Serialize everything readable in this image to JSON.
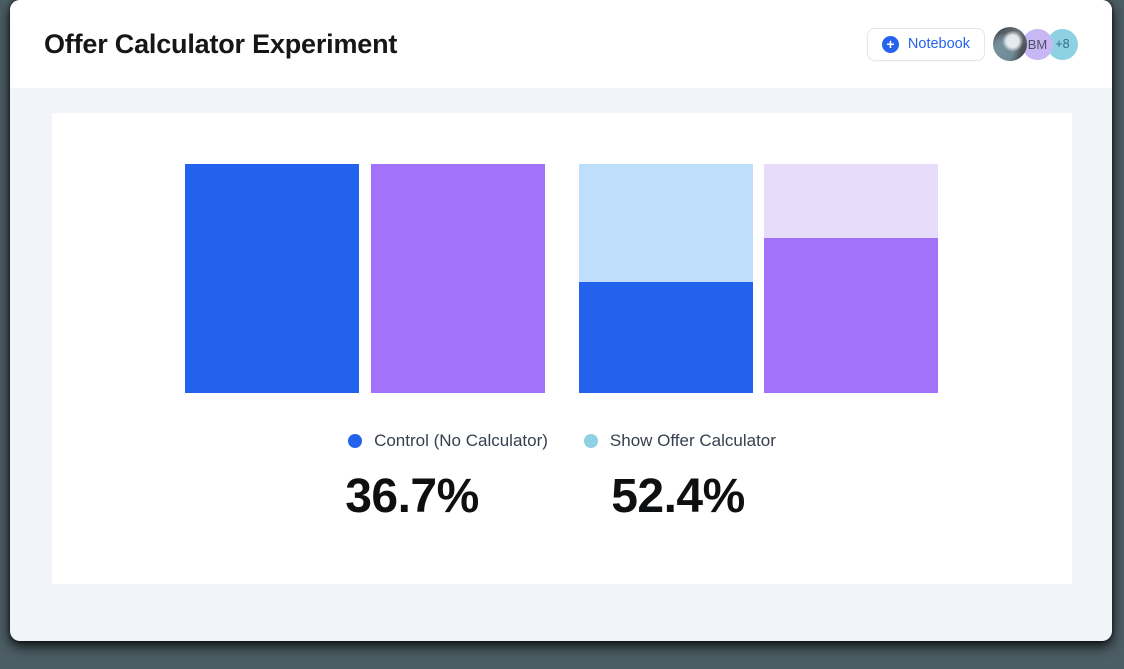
{
  "app": {
    "header": {
      "title": "Offer Calculator Experiment",
      "notebook_button": {
        "label": "Notebook",
        "icon": "plus-circle-icon",
        "icon_glyph": "+"
      },
      "avatars": {
        "photo": "user-photo-avatar",
        "initials": "BM",
        "overflow_count": "+8"
      }
    }
  },
  "chart_data": {
    "type": "bar",
    "title": "",
    "xlabel": "",
    "ylabel": "",
    "axes_visible": false,
    "gridlines": false,
    "bars": [
      {
        "group": 1,
        "segments": [
          {
            "color": "blue",
            "fraction": 1.0
          }
        ]
      },
      {
        "group": 1,
        "segments": [
          {
            "color": "purple",
            "fraction": 1.0
          }
        ]
      },
      {
        "group": 2,
        "segments": [
          {
            "color": "light_blue",
            "fraction": 0.515
          },
          {
            "color": "blue",
            "fraction": 0.485
          }
        ]
      },
      {
        "group": 2,
        "segments": [
          {
            "color": "light_purple",
            "fraction": 0.325
          },
          {
            "color": "purple",
            "fraction": 0.675
          }
        ]
      }
    ],
    "legend": [
      {
        "label": "Control (No Calculator)",
        "color": "#2262ec"
      },
      {
        "label": "Show Offer Calculator",
        "color": "#8ed1e2"
      }
    ],
    "legend_position": "bottom-center",
    "metrics": [
      {
        "series": "Control (No Calculator)",
        "value": "36.7%"
      },
      {
        "series": "Show Offer Calculator",
        "value": "52.4%"
      }
    ]
  },
  "colors": {
    "blue": "#2262ec",
    "purple": "#a273fa",
    "light_blue": "#bfdefc",
    "light_purple": "#e7ddfb",
    "accent": "#2563eb",
    "body_bg": "#f1f4f8",
    "desktop_bg": "#4c5d64",
    "avatar_bm_bg": "#c7b8f3",
    "avatar_count_bg": "#8ed1e2"
  }
}
